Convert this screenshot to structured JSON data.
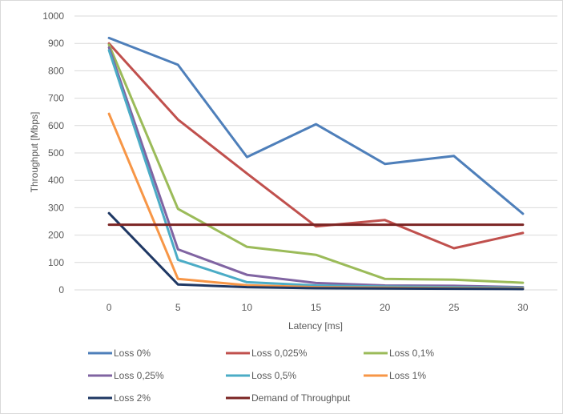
{
  "chart_data": {
    "type": "line",
    "title": "",
    "xlabel": "Latency [ms]",
    "ylabel": "Throughput [Mbps]",
    "x": [
      0,
      5,
      10,
      15,
      20,
      25,
      30
    ],
    "xlim": [
      0,
      30
    ],
    "ylim": [
      0,
      1000
    ],
    "y_ticks": [
      0,
      100,
      200,
      300,
      400,
      500,
      600,
      700,
      800,
      900,
      1000
    ],
    "grid": true,
    "legend_position": "bottom",
    "series": [
      {
        "name": "Loss 0%",
        "color": "#4e7fba",
        "values": [
          920,
          822,
          485,
          605,
          460,
          489,
          278
        ]
      },
      {
        "name": "Loss 0,025%",
        "color": "#c0504d",
        "values": [
          900,
          622,
          425,
          232,
          255,
          152,
          208
        ]
      },
      {
        "name": "Loss 0,1%",
        "color": "#9bbb59",
        "values": [
          895,
          296,
          157,
          128,
          40,
          37,
          26
        ]
      },
      {
        "name": "Loss 0,25%",
        "color": "#8064a2",
        "values": [
          885,
          148,
          55,
          25,
          16,
          15,
          10
        ]
      },
      {
        "name": "Loss 0,5%",
        "color": "#4bacc6",
        "values": [
          875,
          110,
          28,
          16,
          12,
          10,
          8
        ]
      },
      {
        "name": "Loss 1%",
        "color": "#f79646",
        "values": [
          643,
          40,
          17,
          10,
          8,
          6,
          5
        ]
      },
      {
        "name": "Loss 2%",
        "color": "#1f3864",
        "values": [
          280,
          20,
          10,
          6,
          5,
          4,
          3
        ]
      },
      {
        "name": "Demand of Throughput",
        "color": "#7b2423",
        "values": [
          238,
          238,
          238,
          238,
          238,
          238,
          238
        ]
      }
    ]
  }
}
